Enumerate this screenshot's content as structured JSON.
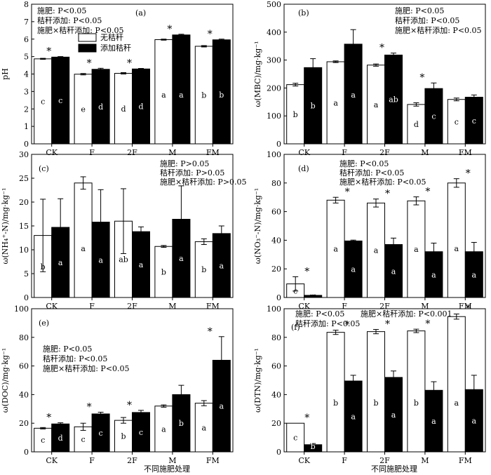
{
  "figure": {
    "x_title": "不同施肥处理",
    "legend": {
      "no_biochar": "无秸秆",
      "with_biochar": "添加秸秆"
    }
  },
  "chart_data": [
    {
      "type": "bar",
      "panel_label": "(a)",
      "ylabel": "pH",
      "ylim": [
        0,
        8
      ],
      "yticks": [
        0,
        1,
        2,
        3,
        4,
        5,
        6,
        7,
        8
      ],
      "categories": [
        "CK",
        "F",
        "2F",
        "M",
        "FM"
      ],
      "series": [
        {
          "name": "无秸秆",
          "color": "#ffffff",
          "values": [
            4.87,
            3.99,
            4.04,
            5.97,
            5.59
          ],
          "errors": [
            0.03,
            0.04,
            0.04,
            0.03,
            0.04
          ],
          "letters": [
            "c",
            "e",
            "d",
            "a",
            "b"
          ]
        },
        {
          "name": "添加秸秆",
          "color": "#000000",
          "values": [
            4.97,
            4.27,
            4.29,
            6.24,
            5.96
          ],
          "errors": [
            0.03,
            0.06,
            0.03,
            0.04,
            0.04
          ],
          "letters": [
            "c",
            "d",
            "d",
            "a",
            "b"
          ]
        }
      ],
      "stars": [
        true,
        true,
        true,
        true,
        true
      ],
      "annotations": [
        "施肥: P<0.05",
        "秸秆添加: P<0.05",
        "施肥×秸秆添加: P<0.05"
      ]
    },
    {
      "type": "bar",
      "panel_label": "(b)",
      "ylabel": "ω(MBC)/mg·kg⁻¹",
      "ylim": [
        0,
        500
      ],
      "yticks": [
        0,
        100,
        200,
        300,
        400,
        500
      ],
      "categories": [
        "CK",
        "F",
        "2F",
        "M",
        "FM"
      ],
      "series": [
        {
          "name": "无秸秆",
          "color": "#ffffff",
          "values": [
            212,
            294,
            282,
            141,
            159
          ],
          "errors": [
            5,
            3,
            4,
            6,
            5
          ],
          "letters": [
            "b",
            "a",
            "a",
            "d",
            "c"
          ]
        },
        {
          "name": "添加秸秆",
          "color": "#000000",
          "values": [
            273,
            357,
            318,
            198,
            167
          ],
          "errors": [
            32,
            52,
            7,
            20,
            8
          ],
          "letters": [
            "b",
            "a",
            "ab",
            "c",
            "c"
          ]
        }
      ],
      "stars": [
        false,
        false,
        true,
        true,
        false
      ],
      "annotations": [
        "施肥: P<0.05",
        "秸秆添加: P<0.05",
        "施肥×秸秆添加: P<0.05"
      ]
    },
    {
      "type": "bar",
      "panel_label": "(c)",
      "ylabel": "ω(NH₄⁺-N)/mg·kg⁻¹",
      "ylim": [
        0,
        30
      ],
      "yticks": [
        0,
        5,
        10,
        15,
        20,
        25,
        30
      ],
      "categories": [
        "CK",
        "F",
        "2F",
        "M",
        "FM"
      ],
      "series": [
        {
          "name": "无秸秆",
          "color": "#ffffff",
          "values": [
            13.0,
            24.0,
            16.0,
            10.7,
            11.7
          ],
          "errors": [
            7.6,
            1.3,
            6.8,
            0.2,
            0.6
          ],
          "letters": [
            "b",
            "a",
            "ab",
            "b",
            "b"
          ]
        },
        {
          "name": "添加秸秆",
          "color": "#000000",
          "values": [
            14.7,
            15.8,
            13.8,
            16.4,
            13.4
          ],
          "errors": [
            6.0,
            6.8,
            1.0,
            7.0,
            1.6
          ],
          "letters": [
            "a",
            "a",
            "a",
            "a",
            "a"
          ]
        }
      ],
      "stars": [
        false,
        false,
        false,
        false,
        false
      ],
      "annotations": [
        "施肥: P>0.05",
        "秸秆添加: P>0.05",
        "施肥×秸秆添加: P>0.05"
      ]
    },
    {
      "type": "bar",
      "panel_label": "(d)",
      "ylabel": "ω(NO₃⁻-N)/mg·kg⁻¹",
      "ylim": [
        0,
        100
      ],
      "yticks": [
        0,
        20,
        40,
        60,
        80,
        100
      ],
      "categories": [
        "CK",
        "F",
        "2F",
        "M",
        "FM"
      ],
      "series": [
        {
          "name": "无秸秆",
          "color": "#ffffff",
          "values": [
            9.5,
            68,
            66,
            67.5,
            80
          ],
          "errors": [
            5.0,
            2.0,
            2.8,
            2.8,
            3.0
          ],
          "letters": [
            "c",
            "a",
            "a",
            "a",
            "a"
          ]
        },
        {
          "name": "添加秸秆",
          "color": "#000000",
          "values": [
            1.5,
            39.5,
            37,
            32,
            32
          ],
          "errors": [
            0.3,
            0.6,
            4.5,
            6.0,
            6.5
          ],
          "letters": [
            "b",
            "a",
            "a",
            "a",
            "a"
          ]
        }
      ],
      "stars": [
        true,
        true,
        true,
        true,
        true
      ],
      "annotations": [
        "施肥: P<0.05",
        "秸秆添加: P<0.05",
        "施肥×秸秆添加: P<0.05"
      ]
    },
    {
      "type": "bar",
      "panel_label": "(e)",
      "ylabel": "ω(DOC)/mg·kg⁻¹",
      "ylim": [
        0,
        100
      ],
      "yticks": [
        0,
        20,
        40,
        60,
        80,
        100
      ],
      "categories": [
        "CK",
        "F",
        "2F",
        "M",
        "FM"
      ],
      "series": [
        {
          "name": "无秸秆",
          "color": "#ffffff",
          "values": [
            16.5,
            17.5,
            22,
            32,
            34
          ],
          "errors": [
            0.5,
            2.5,
            2.0,
            0.8,
            1.8
          ],
          "letters": [
            "c",
            "c",
            "b",
            "a",
            "a"
          ]
        },
        {
          "name": "添加秸秆",
          "color": "#000000",
          "values": [
            19.5,
            26.5,
            27.5,
            40,
            64
          ],
          "errors": [
            0.8,
            1.2,
            1.5,
            6.5,
            16.5
          ],
          "letters": [
            "d",
            "c",
            "c",
            "b",
            "a"
          ]
        }
      ],
      "stars": [
        true,
        true,
        true,
        false,
        true
      ],
      "annotations": [
        "施肥: P<0.05",
        "秸秆添加: P<0.05",
        "施肥×秸秆添加: P<0.05"
      ]
    },
    {
      "type": "bar",
      "panel_label": "(f)",
      "ylabel": "ω(DTN)/mg·kg⁻¹",
      "ylim": [
        0,
        100
      ],
      "yticks": [
        0,
        20,
        40,
        60,
        80,
        100
      ],
      "categories": [
        "CK",
        "F",
        "2F",
        "M",
        "FM"
      ],
      "series": [
        {
          "name": "无秸秆",
          "color": "#ffffff",
          "values": [
            20,
            83.5,
            84,
            84.5,
            94.5
          ],
          "errors": [
            0,
            1.5,
            1.5,
            1.2,
            1.8
          ],
          "letters": [
            "c",
            "b",
            "b",
            "b",
            "a"
          ]
        },
        {
          "name": "添加秸秆",
          "color": "#000000",
          "values": [
            5,
            49.5,
            52,
            43,
            43.5
          ],
          "errors": [
            0.8,
            4.0,
            4.5,
            6.0,
            10.0
          ],
          "letters": [
            "b",
            "a",
            "a",
            "a",
            "a"
          ]
        }
      ],
      "stars": [
        true,
        true,
        true,
        true,
        true
      ],
      "annotations": [
        "施肥: P<0.05",
        "施肥×秸秆添加: P<0.001",
        "秸秆添加: P<0.05"
      ]
    }
  ]
}
